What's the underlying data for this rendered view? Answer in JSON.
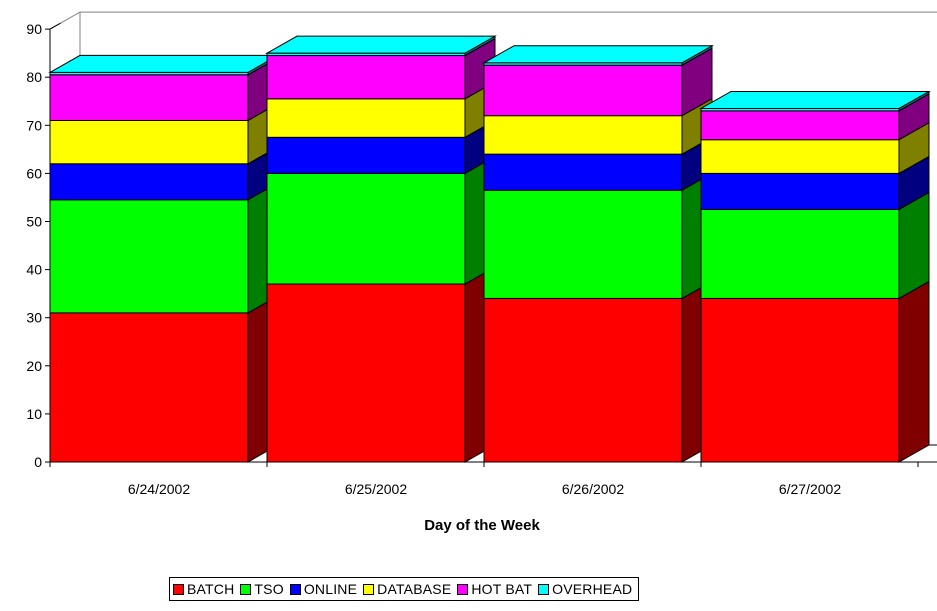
{
  "chart_data": {
    "type": "bar",
    "stacked": true,
    "three_d": true,
    "xlabel": "Day of the Week",
    "ylabel": "",
    "ylim": [
      0,
      90
    ],
    "ytick_step": 10,
    "grid": false,
    "legend_position": "bottom",
    "categories": [
      "6/24/2002",
      "6/25/2002",
      "6/26/2002",
      "6/27/2002"
    ],
    "series": [
      {
        "name": "BATCH",
        "color": "#ff0000",
        "values": [
          31,
          37,
          34,
          34
        ]
      },
      {
        "name": "TSO",
        "color": "#00ff00",
        "values": [
          23.5,
          23,
          22.5,
          18.5
        ]
      },
      {
        "name": "ONLINE",
        "color": "#0000ff",
        "values": [
          7.5,
          7.5,
          7.5,
          7.5
        ]
      },
      {
        "name": "DATABASE",
        "color": "#ffff00",
        "values": [
          9,
          8,
          8,
          7
        ]
      },
      {
        "name": "HOT BAT",
        "color": "#ff00ff",
        "values": [
          9.5,
          9,
          10.5,
          6
        ]
      },
      {
        "name": "OVERHEAD",
        "color": "#00ffff",
        "values": [
          0.5,
          0.5,
          0.5,
          0.5
        ]
      }
    ]
  }
}
